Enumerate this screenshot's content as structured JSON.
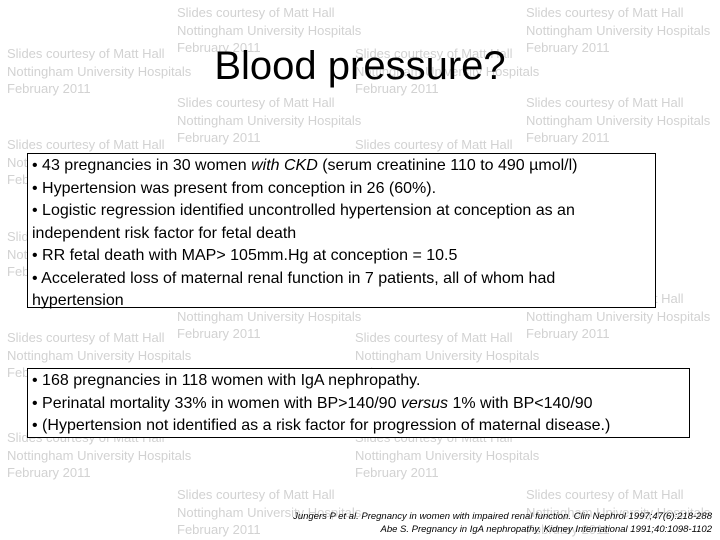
{
  "watermark": {
    "line1": "Slides courtesy of Matt Hall",
    "line2": "Nottingham University Hospitals",
    "line3": "February 2011"
  },
  "title": "Blood pressure?",
  "box1": {
    "lines": [
      {
        "bullet": "•",
        "pre": " 43 pregnancies in 30 women ",
        "em": "with CKD",
        "post": " (serum creatinine 110 to 490 µmol/l)"
      },
      {
        "bullet": "•",
        "pre": " Hypertension was present from conception in 26 (60%).",
        "em": "",
        "post": ""
      },
      {
        "bullet": "•",
        "pre": " Logistic regression identified uncontrolled hypertension at conception as an",
        "em": "",
        "post": ""
      },
      {
        "bullet": "",
        "pre": "independent risk factor for fetal death",
        "em": "",
        "post": ""
      },
      {
        "bullet": "•",
        "pre": " RR fetal death with MAP> 105mm.Hg at conception = 10.5",
        "em": "",
        "post": ""
      },
      {
        "bullet": "•",
        "pre": " Accelerated loss of maternal renal function in 7 patients, all of whom had",
        "em": "",
        "post": ""
      },
      {
        "bullet": "",
        "pre": "hypertension",
        "em": "",
        "post": ""
      }
    ]
  },
  "box2": {
    "lines": [
      {
        "bullet": "•",
        "pre": " 168 pregnancies in 118 women with IgA nephropathy.",
        "em": "",
        "post": ""
      },
      {
        "bullet": "•",
        "pre": " Perinatal mortality 33% in women with BP>140/90 ",
        "em": "versus",
        "post": " 1% with BP<140/90"
      },
      {
        "bullet": "•",
        "pre": " (Hypertension not identified as a risk factor for progression of maternal disease.)",
        "em": "",
        "post": ""
      }
    ]
  },
  "references": [
    "Jungers P et al. Pregnancy in women with impaired renal function. Clin Nephrol 1997;47(6):218-288",
    "Abe S. Pregnancy in IgA nephropathy. Kidney International 1991;40:1098-1102"
  ]
}
